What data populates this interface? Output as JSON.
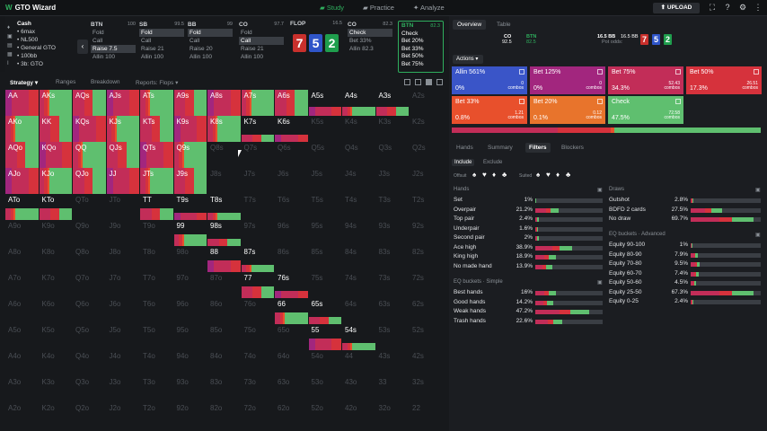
{
  "app": {
    "title": "GTO Wizard",
    "logo": "W",
    "nav": [
      {
        "label": "Study",
        "active": true
      },
      {
        "label": "Practice",
        "active": false
      },
      {
        "label": "Analyze",
        "active": false
      }
    ],
    "upload": "UPLOAD"
  },
  "rail": [
    "♦",
    "▣",
    "▤",
    "▦",
    "I"
  ],
  "cash": {
    "title": "Cash",
    "lines": [
      "• 6max",
      "• NL500",
      "• General GTO",
      "• 100bb",
      "• 3b: GTO"
    ]
  },
  "positions": [
    {
      "name": "BTN",
      "stack": "100",
      "items": [
        {
          "l": "Fold",
          "s": false
        },
        {
          "l": "Call",
          "s": false
        },
        {
          "l": "Raise 7.5",
          "s": true
        },
        {
          "l": "Allin 100",
          "s": false
        }
      ]
    },
    {
      "name": "SB",
      "stack": "99.5",
      "items": [
        {
          "l": "Fold",
          "s": true
        },
        {
          "l": "Call",
          "s": false
        },
        {
          "l": "Raise 21",
          "s": false
        },
        {
          "l": "Allin 100",
          "s": false
        }
      ]
    },
    {
      "name": "BB",
      "stack": "99",
      "items": [
        {
          "l": "Fold",
          "s": true
        },
        {
          "l": "Call",
          "s": false
        },
        {
          "l": "Raise 20",
          "s": false
        },
        {
          "l": "Allin 100",
          "s": false
        }
      ]
    },
    {
      "name": "CO",
      "stack": "97.7",
      "items": [
        {
          "l": "Fold",
          "s": false
        },
        {
          "l": "Call",
          "s": true
        },
        {
          "l": "Raise 21",
          "s": false
        },
        {
          "l": "Allin 100",
          "s": false
        }
      ]
    },
    {
      "name": "CO",
      "stack": "82.3",
      "items": [
        {
          "l": "Check",
          "s": true
        },
        {
          "l": "Bet 33%",
          "s": false
        },
        {
          "l": "Allin 82.3",
          "s": false
        }
      ]
    }
  ],
  "flop": {
    "label": "FLOP",
    "pot": "16.5",
    "cards": [
      {
        "r": "7",
        "c": "#c9302c"
      },
      {
        "r": "5",
        "c": "#2f55c9"
      },
      {
        "r": "2",
        "c": "#1f9e4d"
      }
    ]
  },
  "btn_node": {
    "name": "BTN",
    "stack": "82.3",
    "items": [
      "Check",
      "Bet 20%",
      "Bet 33%",
      "Bet 50%",
      "Bet 75%"
    ]
  },
  "strategy_tabs": [
    {
      "l": "Strategy",
      "s": true
    },
    {
      "l": "Ranges",
      "s": false
    },
    {
      "l": "Breakdown",
      "s": false
    },
    {
      "l": "Reports: Flops",
      "s": false
    }
  ],
  "matrix": {
    "labels": [
      [
        "AA",
        "AKs",
        "AQs",
        "AJs",
        "ATs",
        "A9s",
        "A8s",
        "A7s",
        "A6s",
        "A5s",
        "A4s",
        "A3s",
        "A2s"
      ],
      [
        "AKo",
        "KK",
        "KQs",
        "KJs",
        "KTs",
        "K9s",
        "K8s",
        "K7s",
        "K6s",
        "K5s",
        "K4s",
        "K3s",
        "K2s"
      ],
      [
        "AQo",
        "KQo",
        "QQ",
        "QJs",
        "QTs",
        "Q9s",
        "Q8s",
        "Q7s",
        "Q6s",
        "Q5s",
        "Q4s",
        "Q3s",
        "Q2s"
      ],
      [
        "AJo",
        "KJo",
        "QJo",
        "JJ",
        "JTs",
        "J9s",
        "J8s",
        "J7s",
        "J6s",
        "J5s",
        "J4s",
        "J3s",
        "J2s"
      ],
      [
        "ATo",
        "KTo",
        "QTo",
        "JTo",
        "TT",
        "T9s",
        "T8s",
        "T7s",
        "T6s",
        "T5s",
        "T4s",
        "T3s",
        "T2s"
      ],
      [
        "A9o",
        "K9o",
        "Q9o",
        "J9o",
        "T9o",
        "99",
        "98s",
        "97s",
        "96s",
        "95s",
        "94s",
        "93s",
        "92s"
      ],
      [
        "A8o",
        "K8o",
        "Q8o",
        "J8o",
        "T8o",
        "98o",
        "88",
        "87s",
        "86s",
        "85s",
        "84s",
        "83s",
        "82s"
      ],
      [
        "A7o",
        "K7o",
        "Q7o",
        "J7o",
        "T7o",
        "97o",
        "87o",
        "77",
        "76s",
        "75s",
        "74s",
        "73s",
        "72s"
      ],
      [
        "A6o",
        "K6o",
        "Q6o",
        "J6o",
        "T6o",
        "96o",
        "86o",
        "76o",
        "66",
        "65s",
        "64s",
        "63s",
        "62s"
      ],
      [
        "A5o",
        "K5o",
        "Q5o",
        "J5o",
        "T5o",
        "95o",
        "85o",
        "75o",
        "65o",
        "55",
        "54s",
        "53s",
        "52s"
      ],
      [
        "A4o",
        "K4o",
        "Q4o",
        "J4o",
        "T4o",
        "94o",
        "84o",
        "74o",
        "64o",
        "54o",
        "44",
        "43s",
        "42s"
      ],
      [
        "A3o",
        "K3o",
        "Q3o",
        "J3o",
        "T3o",
        "93o",
        "83o",
        "73o",
        "63o",
        "53o",
        "43o",
        "33",
        "32s"
      ],
      [
        "A2o",
        "K2o",
        "Q2o",
        "J2o",
        "T2o",
        "92o",
        "82o",
        "72o",
        "62o",
        "52o",
        "42o",
        "32o",
        "22"
      ]
    ],
    "active": [
      [
        1,
        1,
        1,
        1,
        1,
        1,
        1,
        1,
        1,
        1,
        1,
        1,
        0
      ],
      [
        1,
        1,
        1,
        1,
        1,
        1,
        1,
        1,
        1,
        0,
        0,
        0,
        0
      ],
      [
        1,
        1,
        1,
        1,
        1,
        1,
        0,
        0,
        0,
        0,
        0,
        0,
        0
      ],
      [
        1,
        1,
        1,
        1,
        1,
        1,
        0,
        0,
        0,
        0,
        0,
        0,
        0
      ],
      [
        1,
        1,
        0,
        0,
        1,
        1,
        1,
        0,
        0,
        0,
        0,
        0,
        0
      ],
      [
        0,
        0,
        0,
        0,
        0,
        1,
        1,
        0,
        0,
        0,
        0,
        0,
        0
      ],
      [
        0,
        0,
        0,
        0,
        0,
        0,
        1,
        1,
        0,
        0,
        0,
        0,
        0
      ],
      [
        0,
        0,
        0,
        0,
        0,
        0,
        0,
        1,
        1,
        0,
        0,
        0,
        0
      ],
      [
        0,
        0,
        0,
        0,
        0,
        0,
        0,
        0,
        1,
        1,
        0,
        0,
        0
      ],
      [
        0,
        0,
        0,
        0,
        0,
        0,
        0,
        0,
        0,
        1,
        1,
        0,
        0
      ],
      [
        0,
        0,
        0,
        0,
        0,
        0,
        0,
        0,
        0,
        0,
        0,
        0,
        0
      ],
      [
        0,
        0,
        0,
        0,
        0,
        0,
        0,
        0,
        0,
        0,
        0,
        0,
        0
      ],
      [
        0,
        0,
        0,
        0,
        0,
        0,
        0,
        0,
        0,
        0,
        0,
        0,
        0
      ]
    ]
  },
  "right_tabs": [
    {
      "l": "Overview",
      "s": true
    },
    {
      "l": "Table",
      "s": false
    }
  ],
  "pot_info": {
    "co": "CO",
    "co_v": "92.5",
    "btn": "BTN",
    "btn_v": "82.5",
    "pot": "16.5 BB",
    "pot_odds": "Pot odds:",
    "bb2": "16.5 BB"
  },
  "mini_cards": [
    {
      "r": "7",
      "c": "#c9302c"
    },
    {
      "r": "5",
      "c": "#2f55c9"
    },
    {
      "r": "2",
      "c": "#1f9e4d"
    }
  ],
  "actions_label": "Actions",
  "actions": [
    {
      "name": "Allin 561%",
      "pct": "0%",
      "combos": "0",
      "color": "#3a55c8"
    },
    {
      "name": "Bet 125%",
      "pct": "0%",
      "combos": "0",
      "color": "#a2267e"
    },
    {
      "name": "Bet 75%",
      "pct": "34.3%",
      "combos": "52.43",
      "color": "#c22d58"
    },
    {
      "name": "Bet 50%",
      "pct": "17.3%",
      "combos": "26.51",
      "color": "#d6323c"
    },
    {
      "name": "Bet 33%",
      "pct": "0.8%",
      "combos": "1.21",
      "color": "#e8502c"
    },
    {
      "name": "Bet 20%",
      "pct": "0.1%",
      "combos": "0.12",
      "color": "#e8742c"
    },
    {
      "name": "Check",
      "pct": "47.5%",
      "combos": "72.58",
      "color": "#5fbf6f"
    }
  ],
  "freq_bar": [
    {
      "v": 0.343,
      "c": "#c22d58"
    },
    {
      "v": 0.173,
      "c": "#d6323c"
    },
    {
      "v": 0.009,
      "c": "#e8502c"
    },
    {
      "v": 0.475,
      "c": "#5fbf6f"
    }
  ],
  "bottom_tabs": [
    {
      "l": "Hands",
      "s": false
    },
    {
      "l": "Summary",
      "s": false
    },
    {
      "l": "Filters",
      "s": true
    },
    {
      "l": "Blockers",
      "s": false
    }
  ],
  "include_tabs": [
    {
      "l": "Include",
      "s": true
    },
    {
      "l": "Exclude",
      "s": false
    }
  ],
  "suit_labels": {
    "offsuit": "Offsuit",
    "suited": "Suited"
  },
  "hands": {
    "title": "Hands",
    "rows": [
      {
        "n": "Set",
        "v": "1%",
        "f": 0.01
      },
      {
        "n": "Overpair",
        "v": "21.2%",
        "f": 0.35
      },
      {
        "n": "Top pair",
        "v": "2.4%",
        "f": 0.05
      },
      {
        "n": "Underpair",
        "v": "1.6%",
        "f": 0.04
      },
      {
        "n": "Second pair",
        "v": "2%",
        "f": 0.05
      },
      {
        "n": "Ace high",
        "v": "38.9%",
        "f": 0.55
      },
      {
        "n": "King high",
        "v": "18.9%",
        "f": 0.3
      },
      {
        "n": "No made hand",
        "v": "13.9%",
        "f": 0.25
      }
    ]
  },
  "eq_simple": {
    "title": "EQ buckets · Simple",
    "rows": [
      {
        "n": "Best hands",
        "v": "16%",
        "f": 0.3
      },
      {
        "n": "Good hands",
        "v": "14.2%",
        "f": 0.27
      },
      {
        "n": "Weak hands",
        "v": "47.2%",
        "f": 0.8
      },
      {
        "n": "Trash hands",
        "v": "22.6%",
        "f": 0.4
      }
    ]
  },
  "draws": {
    "title": "Draws",
    "rows": [
      {
        "n": "Gutshot",
        "v": "2.8%",
        "f": 0.04
      },
      {
        "n": "BDFD 2 cards",
        "v": "27.5%",
        "f": 0.45
      },
      {
        "n": "No draw",
        "v": "69.7%",
        "f": 0.9
      }
    ]
  },
  "eq_adv": {
    "title": "EQ buckets · Advanced",
    "rows": [
      {
        "n": "Equity 90-100",
        "v": "1%",
        "f": 0.02
      },
      {
        "n": "Equity 80-90",
        "v": "7.9%",
        "f": 0.1
      },
      {
        "n": "Equity 70-80",
        "v": "9.5%",
        "f": 0.13
      },
      {
        "n": "Equity 60-70",
        "v": "7.4%",
        "f": 0.11
      },
      {
        "n": "Equity 50-60",
        "v": "4.5%",
        "f": 0.08
      },
      {
        "n": "Equity 25-50",
        "v": "67.3%",
        "f": 0.9
      },
      {
        "n": "Equity 0-25",
        "v": "2.4%",
        "f": 0.04
      }
    ]
  }
}
